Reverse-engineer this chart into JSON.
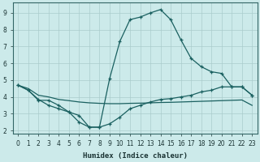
{
  "xlabel": "Humidex (Indice chaleur)",
  "bg_color": "#cceaea",
  "grid_color": "#aacccc",
  "line_color": "#1a6060",
  "xlim": [
    -0.5,
    23.5
  ],
  "ylim": [
    1.8,
    9.6
  ],
  "yticks": [
    2,
    3,
    4,
    5,
    6,
    7,
    8,
    9
  ],
  "xticks": [
    0,
    1,
    2,
    3,
    4,
    5,
    6,
    7,
    8,
    9,
    10,
    11,
    12,
    13,
    14,
    15,
    16,
    17,
    18,
    19,
    20,
    21,
    22,
    23
  ],
  "line1_x": [
    0,
    1,
    2,
    3,
    4,
    5,
    6,
    7,
    8,
    9,
    10,
    11,
    12,
    13,
    14,
    15,
    16,
    17,
    18,
    19,
    20,
    21,
    22,
    23
  ],
  "line1_y": [
    4.7,
    4.4,
    3.8,
    3.8,
    3.5,
    3.1,
    2.5,
    2.2,
    2.2,
    2.4,
    2.8,
    3.3,
    3.5,
    3.7,
    3.85,
    3.9,
    4.0,
    4.1,
    4.3,
    4.4,
    4.6,
    4.6,
    4.6,
    4.1
  ],
  "line2_x": [
    0,
    1,
    2,
    3,
    4,
    5,
    6,
    7,
    8,
    9,
    10,
    11,
    12,
    13,
    14,
    15,
    16,
    17,
    18,
    19,
    20,
    21,
    22,
    23
  ],
  "line2_y": [
    4.7,
    4.5,
    4.1,
    4.0,
    3.85,
    3.78,
    3.7,
    3.65,
    3.62,
    3.6,
    3.6,
    3.62,
    3.63,
    3.65,
    3.67,
    3.68,
    3.7,
    3.72,
    3.74,
    3.76,
    3.78,
    3.8,
    3.82,
    3.5
  ],
  "line3_x": [
    0,
    1,
    2,
    3,
    4,
    5,
    6,
    7,
    8,
    9,
    10,
    11,
    12,
    13,
    14,
    15,
    16,
    17,
    18,
    19,
    20,
    21,
    22,
    23
  ],
  "line3_y": [
    4.7,
    4.4,
    3.85,
    3.5,
    3.3,
    3.1,
    2.9,
    2.2,
    2.2,
    5.1,
    7.3,
    8.6,
    8.75,
    9.0,
    9.2,
    8.6,
    7.4,
    6.3,
    5.8,
    5.5,
    5.4,
    4.6,
    4.6,
    4.1
  ]
}
